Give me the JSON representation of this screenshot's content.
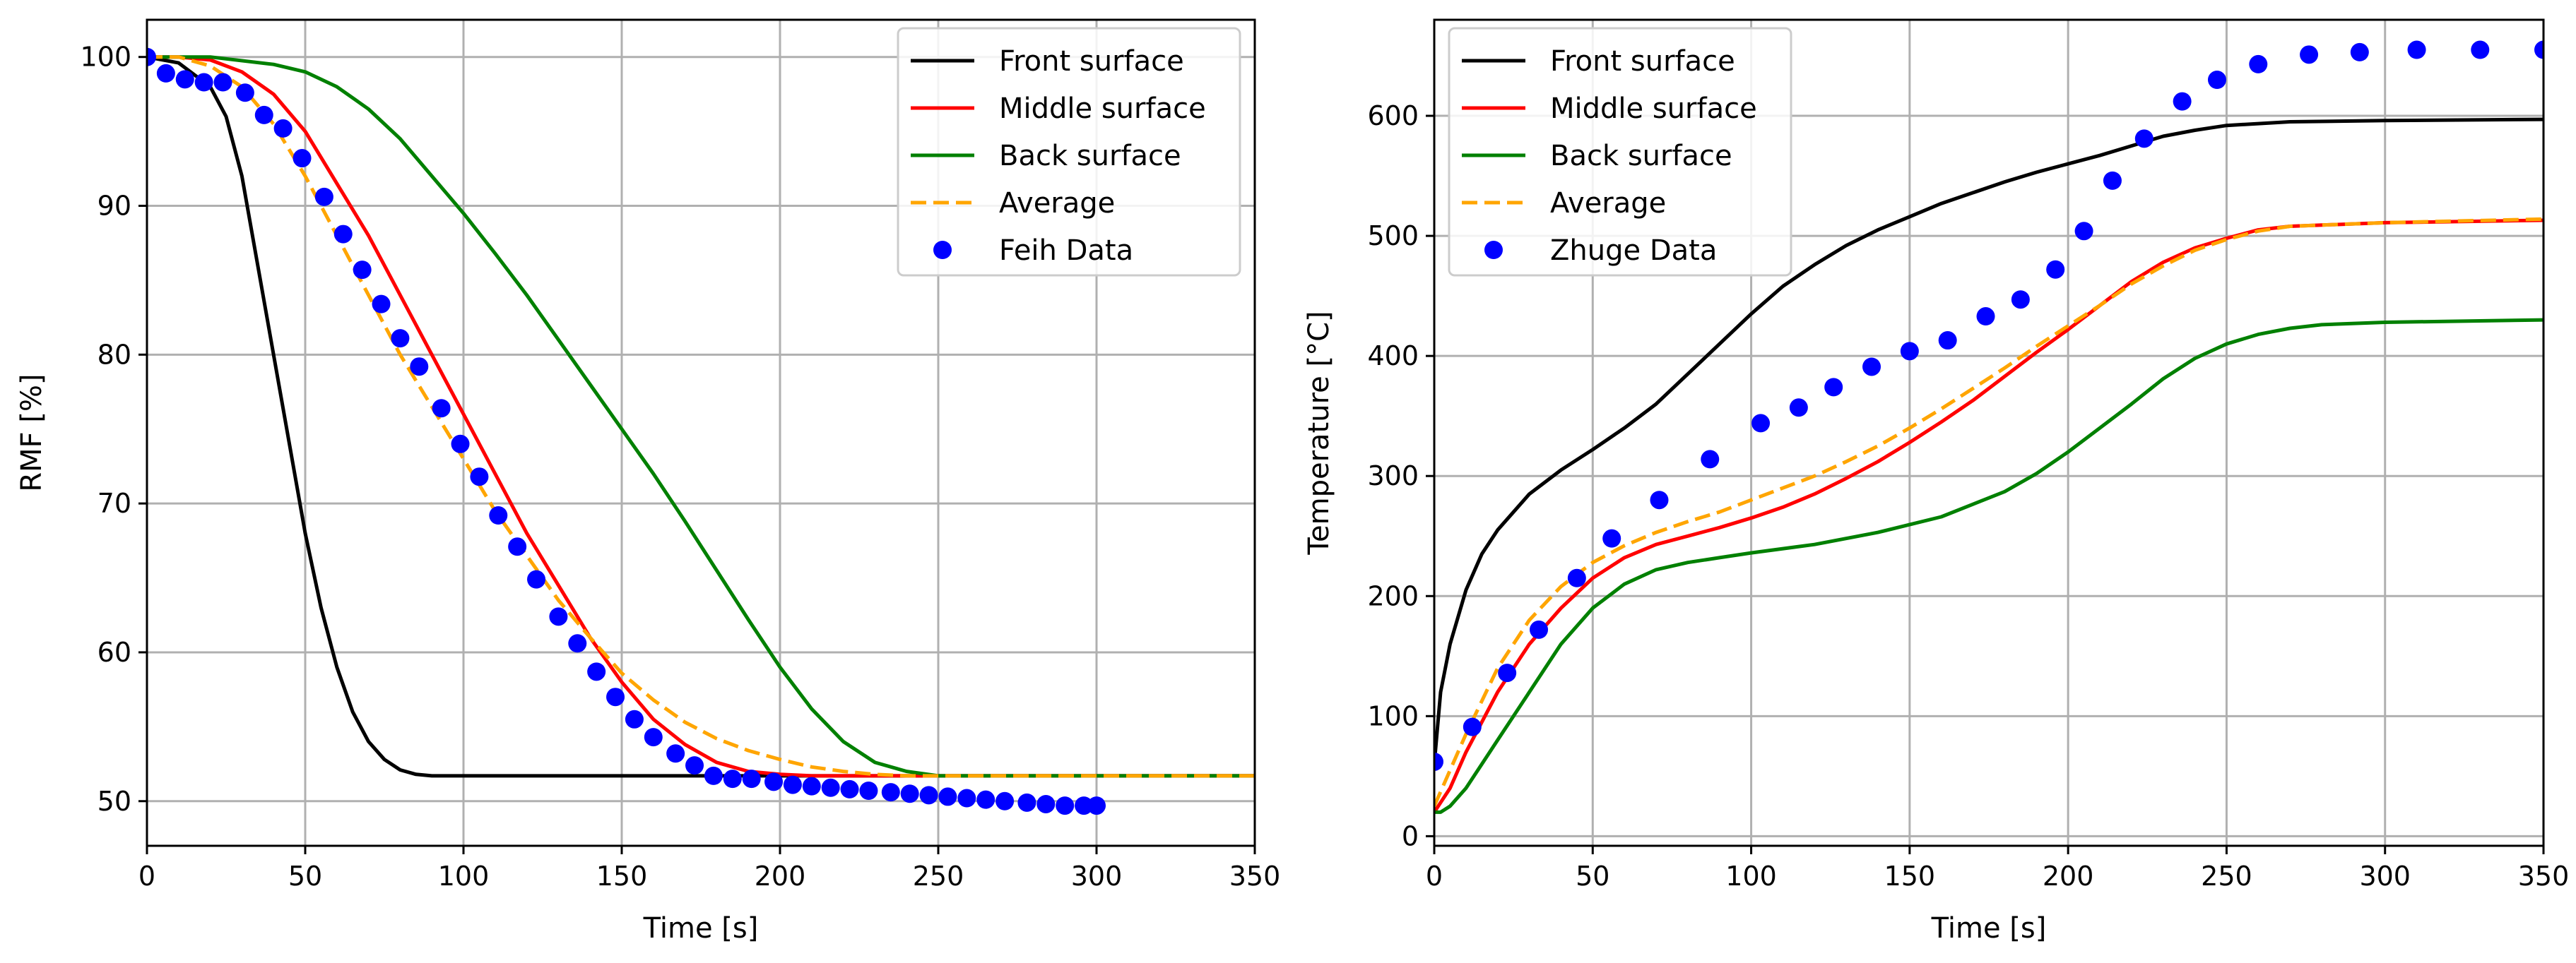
{
  "chart_data": [
    {
      "type": "line",
      "title": "",
      "xlabel": "Time [s]",
      "ylabel": "RMF [%]",
      "xlim": [
        0,
        350
      ],
      "ylim": [
        47,
        102.5
      ],
      "xticks": [
        0,
        50,
        100,
        150,
        200,
        250,
        300,
        350
      ],
      "yticks": [
        50,
        60,
        70,
        80,
        90,
        100
      ],
      "grid": true,
      "legend_position": "top-right",
      "series": [
        {
          "name": "Front surface",
          "style": "solid",
          "color": "#000000",
          "x": [
            0,
            10,
            20,
            25,
            30,
            35,
            40,
            45,
            50,
            55,
            60,
            65,
            70,
            75,
            80,
            85,
            90,
            95,
            100,
            120,
            150,
            200,
            250,
            300,
            350
          ],
          "y": [
            100,
            99.6,
            98.0,
            96.0,
            92.0,
            86.0,
            80.0,
            74.0,
            68.0,
            63.0,
            59.0,
            56.0,
            54.0,
            52.8,
            52.1,
            51.8,
            51.7,
            51.7,
            51.7,
            51.7,
            51.7,
            51.7,
            51.7,
            51.7,
            51.7
          ]
        },
        {
          "name": "Middle surface",
          "style": "solid",
          "color": "#ff0000",
          "x": [
            0,
            10,
            20,
            30,
            40,
            50,
            60,
            70,
            80,
            90,
            100,
            110,
            120,
            130,
            140,
            150,
            160,
            170,
            180,
            190,
            200,
            210,
            220,
            240,
            260,
            300,
            350
          ],
          "y": [
            100,
            100,
            99.8,
            99.0,
            97.5,
            95.0,
            91.5,
            88.0,
            84.0,
            80.0,
            76.0,
            72.0,
            68.0,
            64.5,
            61.0,
            58.0,
            55.5,
            53.8,
            52.6,
            52.0,
            51.8,
            51.7,
            51.7,
            51.7,
            51.7,
            51.7,
            51.7
          ]
        },
        {
          "name": "Back surface",
          "style": "solid",
          "color": "#008000",
          "x": [
            0,
            20,
            40,
            50,
            60,
            70,
            80,
            90,
            100,
            110,
            120,
            130,
            140,
            150,
            160,
            170,
            180,
            190,
            200,
            210,
            220,
            230,
            240,
            250,
            270,
            300,
            350
          ],
          "y": [
            100,
            100,
            99.5,
            99.0,
            98.0,
            96.5,
            94.5,
            92.0,
            89.5,
            86.8,
            84.0,
            81.0,
            78.0,
            75.0,
            72.0,
            68.8,
            65.5,
            62.2,
            59.0,
            56.2,
            54.0,
            52.6,
            52.0,
            51.7,
            51.7,
            51.7,
            51.7
          ]
        },
        {
          "name": "Average",
          "style": "dashed",
          "color": "#ffa500",
          "x": [
            0,
            10,
            20,
            30,
            40,
            50,
            60,
            70,
            80,
            90,
            100,
            110,
            120,
            130,
            140,
            150,
            160,
            170,
            180,
            190,
            200,
            210,
            220,
            230,
            240,
            250,
            300,
            350
          ],
          "y": [
            100,
            100,
            99.4,
            98.0,
            95.5,
            92.0,
            88.0,
            84.0,
            80.0,
            76.5,
            73.0,
            69.5,
            66.5,
            63.5,
            61.0,
            58.6,
            56.8,
            55.3,
            54.2,
            53.4,
            52.8,
            52.3,
            52.0,
            51.8,
            51.7,
            51.7,
            51.7,
            51.7
          ]
        },
        {
          "name": "Feih Data",
          "style": "markers",
          "color": "#0000ff",
          "x": [
            0,
            6,
            12,
            18,
            24,
            31,
            37,
            43,
            49,
            56,
            62,
            68,
            74,
            80,
            86,
            93,
            99,
            105,
            111,
            117,
            123,
            130,
            136,
            142,
            148,
            154,
            160,
            167,
            173,
            179,
            185,
            191,
            198,
            204,
            210,
            216,
            222,
            228,
            235,
            241,
            247,
            253,
            259,
            265,
            271,
            278,
            284,
            290,
            296,
            300
          ],
          "y": [
            100,
            98.9,
            98.5,
            98.3,
            98.3,
            97.6,
            96.1,
            95.2,
            93.2,
            90.6,
            88.1,
            85.7,
            83.4,
            81.1,
            79.2,
            76.4,
            74.0,
            71.8,
            69.2,
            67.1,
            64.9,
            62.4,
            60.6,
            58.7,
            57.0,
            55.5,
            54.3,
            53.2,
            52.4,
            51.7,
            51.5,
            51.5,
            51.3,
            51.1,
            51.0,
            50.9,
            50.8,
            50.7,
            50.6,
            50.5,
            50.4,
            50.3,
            50.2,
            50.1,
            50.0,
            49.9,
            49.8,
            49.7,
            49.7,
            49.7
          ]
        }
      ]
    },
    {
      "type": "line",
      "title": "",
      "xlabel": "Time [s]",
      "ylabel": "Temperature [°C]",
      "xlim": [
        0,
        350
      ],
      "ylim": [
        -8,
        680
      ],
      "xticks": [
        0,
        50,
        100,
        150,
        200,
        250,
        300,
        350
      ],
      "yticks": [
        0,
        100,
        200,
        300,
        400,
        500,
        600
      ],
      "grid": true,
      "legend_position": "top-left",
      "series": [
        {
          "name": "Front surface",
          "style": "solid",
          "color": "#000000",
          "x": [
            0,
            2,
            5,
            10,
            15,
            20,
            30,
            40,
            50,
            60,
            70,
            80,
            90,
            100,
            110,
            120,
            130,
            140,
            150,
            160,
            170,
            180,
            190,
            200,
            210,
            220,
            230,
            240,
            250,
            270,
            300,
            350
          ],
          "y": [
            60,
            120,
            160,
            205,
            235,
            255,
            285,
            305,
            322,
            340,
            360,
            385,
            410,
            435,
            458,
            476,
            492,
            505,
            516,
            527,
            536,
            545,
            553,
            560,
            567,
            575,
            583,
            588,
            592,
            595,
            596,
            597
          ]
        },
        {
          "name": "Middle surface",
          "style": "solid",
          "color": "#ff0000",
          "x": [
            0,
            5,
            10,
            20,
            30,
            40,
            50,
            60,
            70,
            80,
            90,
            100,
            110,
            120,
            130,
            140,
            150,
            160,
            170,
            180,
            190,
            200,
            210,
            220,
            230,
            240,
            250,
            260,
            270,
            300,
            350
          ],
          "y": [
            20,
            40,
            70,
            120,
            160,
            190,
            215,
            232,
            243,
            250,
            257,
            265,
            274,
            285,
            298,
            312,
            328,
            345,
            363,
            383,
            403,
            422,
            442,
            462,
            478,
            490,
            498,
            505,
            508,
            511,
            513
          ]
        },
        {
          "name": "Back surface",
          "style": "solid",
          "color": "#008000",
          "x": [
            0,
            2,
            5,
            10,
            15,
            20,
            30,
            40,
            50,
            60,
            70,
            80,
            90,
            100,
            120,
            140,
            160,
            180,
            190,
            200,
            210,
            220,
            230,
            240,
            250,
            260,
            270,
            280,
            300,
            350
          ],
          "y": [
            20,
            20,
            25,
            40,
            60,
            80,
            120,
            160,
            190,
            210,
            222,
            228,
            232,
            236,
            243,
            253,
            266,
            287,
            302,
            320,
            340,
            360,
            381,
            398,
            410,
            418,
            423,
            426,
            428,
            430
          ]
        },
        {
          "name": "Average",
          "style": "dashed",
          "color": "#ffa500",
          "x": [
            0,
            5,
            10,
            20,
            30,
            40,
            50,
            60,
            70,
            80,
            90,
            100,
            110,
            120,
            130,
            140,
            150,
            160,
            170,
            180,
            190,
            200,
            210,
            220,
            230,
            240,
            250,
            260,
            270,
            300,
            350
          ],
          "y": [
            25,
            55,
            85,
            140,
            180,
            208,
            228,
            242,
            253,
            262,
            270,
            280,
            290,
            300,
            312,
            325,
            340,
            356,
            373,
            390,
            408,
            425,
            442,
            460,
            475,
            488,
            497,
            504,
            508,
            511,
            514
          ]
        },
        {
          "name": "Zhuge Data",
          "style": "markers",
          "color": "#0000ff",
          "x": [
            0,
            12,
            23,
            33,
            45,
            56,
            71,
            87,
            103,
            115,
            126,
            138,
            150,
            162,
            174,
            185,
            196,
            205,
            214,
            224,
            236,
            247,
            260,
            276,
            292,
            310,
            330,
            350
          ],
          "y": [
            62,
            91,
            136,
            172,
            215,
            248,
            280,
            314,
            344,
            357,
            374,
            391,
            404,
            413,
            433,
            447,
            472,
            504,
            546,
            581,
            612,
            630,
            643,
            651,
            653,
            655,
            655,
            655
          ]
        }
      ]
    }
  ]
}
